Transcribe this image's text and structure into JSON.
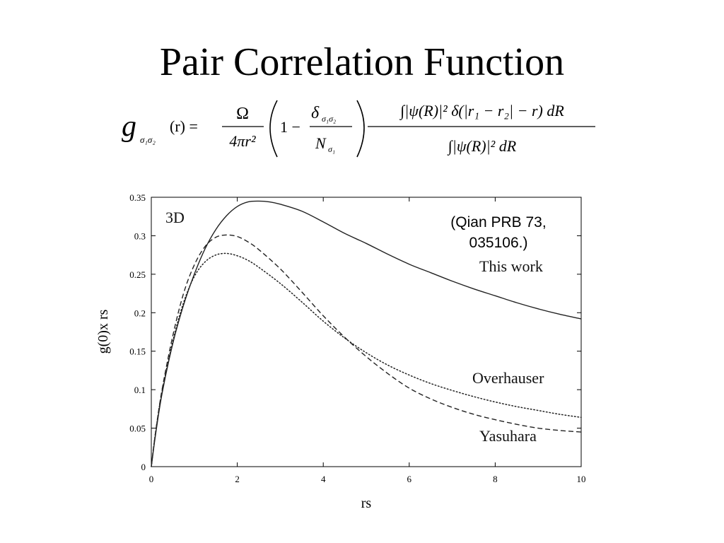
{
  "slide": {
    "title": "Pair Correlation Function",
    "citation": "(Qian PRB 73, 035106.)"
  },
  "formula": {
    "lhs": "g",
    "lhs_sub": "σ₁σ₂",
    "lhs_arg": "(r) =",
    "frac1_num": "Ω",
    "frac1_den": "4πr²",
    "one_minus": "1 −",
    "frac2_num": "δ",
    "frac2_num_sub": "σ₁σ₂",
    "frac2_den": "N",
    "frac2_den_sub": "σ₁",
    "frac3_num": "∫|ψ(R)|² δ(|r₁ − r₂| − r) dR",
    "frac3_den": "∫|ψ(R)|² dR"
  },
  "chart_data": {
    "type": "line",
    "title": "",
    "xlabel": "rs",
    "ylabel": "g(0)x rs",
    "xlim": [
      0,
      10
    ],
    "ylim": [
      0,
      0.35
    ],
    "x_ticks": [
      0,
      2,
      4,
      6,
      8,
      10
    ],
    "y_ticks": [
      0,
      0.05,
      0.1,
      0.15,
      0.2,
      0.25,
      0.3,
      0.35
    ],
    "y_tick_labels": [
      "0",
      "0.05",
      "0.1",
      "0.15",
      "0.2",
      "0.25",
      "0.3",
      "0.35"
    ],
    "grid": false,
    "annotations": [
      "3D",
      "This work",
      "Overhauser",
      "Yasuhara"
    ],
    "series": [
      {
        "name": "This work",
        "style": "solid",
        "x": [
          0,
          0.1,
          0.25,
          0.5,
          0.75,
          1.0,
          1.25,
          1.5,
          1.75,
          2.0,
          2.25,
          2.5,
          2.75,
          3.0,
          3.5,
          4.0,
          4.5,
          5.0,
          5.5,
          6.0,
          6.5,
          7.0,
          7.5,
          8.0,
          8.5,
          9.0,
          9.5,
          10.0
        ],
        "y": [
          0,
          0.042,
          0.095,
          0.16,
          0.21,
          0.25,
          0.283,
          0.308,
          0.326,
          0.338,
          0.344,
          0.345,
          0.344,
          0.341,
          0.332,
          0.318,
          0.303,
          0.29,
          0.276,
          0.263,
          0.252,
          0.241,
          0.231,
          0.222,
          0.213,
          0.205,
          0.198,
          0.192
        ]
      },
      {
        "name": "Yasuhara",
        "style": "dashed",
        "x": [
          0,
          0.1,
          0.25,
          0.5,
          0.75,
          1.0,
          1.25,
          1.5,
          1.75,
          2.0,
          2.25,
          2.5,
          3.0,
          3.5,
          4.0,
          4.5,
          5.0,
          5.5,
          6.0,
          6.5,
          7.0,
          7.5,
          8.0,
          8.5,
          9.0,
          9.5,
          10.0
        ],
        "y": [
          0,
          0.045,
          0.1,
          0.17,
          0.225,
          0.262,
          0.286,
          0.298,
          0.301,
          0.299,
          0.292,
          0.282,
          0.257,
          0.227,
          0.196,
          0.168,
          0.143,
          0.121,
          0.102,
          0.088,
          0.077,
          0.068,
          0.061,
          0.055,
          0.05,
          0.047,
          0.045
        ]
      },
      {
        "name": "Overhauser",
        "style": "dotted",
        "x": [
          0,
          0.1,
          0.25,
          0.5,
          0.75,
          1.0,
          1.25,
          1.5,
          1.75,
          2.0,
          2.25,
          2.5,
          3.0,
          3.5,
          4.0,
          4.5,
          5.0,
          5.5,
          6.0,
          6.5,
          7.0,
          7.5,
          8.0,
          8.5,
          9.0,
          9.5,
          10.0
        ],
        "y": [
          0,
          0.045,
          0.098,
          0.163,
          0.213,
          0.247,
          0.266,
          0.275,
          0.277,
          0.274,
          0.268,
          0.259,
          0.238,
          0.214,
          0.189,
          0.167,
          0.148,
          0.132,
          0.119,
          0.108,
          0.099,
          0.091,
          0.084,
          0.078,
          0.073,
          0.068,
          0.064
        ]
      }
    ]
  }
}
